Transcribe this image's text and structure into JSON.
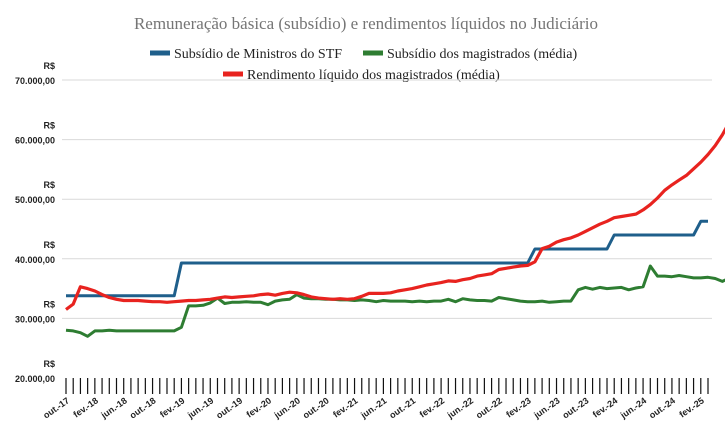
{
  "chart_data": {
    "type": "line",
    "title": "Remuneração básica (subsídio) e rendimentos líquidos no  Judiciário",
    "xlabel": "",
    "ylabel": "",
    "ylim": [
      20000,
      70000
    ],
    "y_ticks": [
      {
        "value": 70000,
        "currency": "R$",
        "label": "70.000,00"
      },
      {
        "value": 60000,
        "currency": "R$",
        "label": "60.000,00"
      },
      {
        "value": 50000,
        "currency": "R$",
        "label": "50.000,00"
      },
      {
        "value": 40000,
        "currency": "R$",
        "label": "40.000,00"
      },
      {
        "value": 30000,
        "currency": "R$",
        "label": "30.000,00"
      },
      {
        "value": 20000,
        "currency": "R$",
        "label": "20.000,00"
      }
    ],
    "x_tick_labels": [
      "out.-17",
      "fev.-18",
      "jun.-18",
      "out.-18",
      "fev.-19",
      "jun.-19",
      "out.-19",
      "fev.-20",
      "jun.-20",
      "out.-20",
      "fev.-21",
      "jun.-21",
      "out.-21",
      "fev.-22",
      "jun.-22",
      "out.-22",
      "fev.-23",
      "jun.-23",
      "out.-23",
      "fev.-24",
      "jun.-24",
      "out.-24",
      "fev.-25"
    ],
    "x_start": "2017-10",
    "grid": "horizontal",
    "legend_position": "top",
    "series": [
      {
        "name": "Subsídio de Ministros do STF",
        "color": "#1f5f8b",
        "values": [
          33800,
          33800,
          33800,
          33800,
          33800,
          33800,
          33800,
          33800,
          33800,
          33800,
          33800,
          33800,
          33800,
          33800,
          33800,
          33800,
          39300,
          39300,
          39300,
          39300,
          39300,
          39300,
          39300,
          39300,
          39300,
          39300,
          39300,
          39300,
          39300,
          39300,
          39300,
          39300,
          39300,
          39300,
          39300,
          39300,
          39300,
          39300,
          39300,
          39300,
          39300,
          39300,
          39300,
          39300,
          39300,
          39300,
          39300,
          39300,
          39300,
          39300,
          39300,
          39300,
          39300,
          39300,
          39300,
          39300,
          39300,
          39300,
          39300,
          39300,
          39300,
          39300,
          39300,
          39300,
          39300,
          41650,
          41650,
          41650,
          41650,
          41650,
          41650,
          41650,
          41650,
          41650,
          41650,
          41650,
          44000,
          44000,
          44000,
          44000,
          44000,
          44000,
          44000,
          44000,
          44000,
          44000,
          44000,
          44000,
          46300,
          46300
        ]
      },
      {
        "name": "Subsídio dos magistrados (média)",
        "color": "#2e7d32",
        "values": [
          28000,
          27900,
          27600,
          27000,
          27900,
          27900,
          28000,
          27900,
          27900,
          27900,
          27900,
          27900,
          27900,
          27900,
          27900,
          27900,
          28500,
          32100,
          32100,
          32200,
          32600,
          33400,
          32500,
          32700,
          32700,
          32800,
          32700,
          32700,
          32300,
          32900,
          33100,
          33200,
          34000,
          33400,
          33300,
          33300,
          33200,
          33200,
          33100,
          33100,
          33000,
          33100,
          33000,
          32800,
          33000,
          32900,
          32900,
          32900,
          32800,
          32900,
          32800,
          32900,
          32900,
          33200,
          32800,
          33300,
          33100,
          33000,
          33000,
          32900,
          33500,
          33300,
          33100,
          32900,
          32800,
          32800,
          32900,
          32700,
          32800,
          32900,
          32900,
          34800,
          35200,
          34900,
          35200,
          35000,
          35100,
          35200,
          34800,
          35100,
          35300,
          38800,
          37100,
          37100,
          37000,
          37200,
          37000,
          36800,
          36800,
          36900,
          36700,
          36200,
          36800,
          38800,
          37800
        ]
      },
      {
        "name": "Rendimento líquido dos magistrados (média)",
        "color": "#e8231f",
        "values": [
          31500,
          32400,
          35300,
          35000,
          34600,
          34000,
          33500,
          33200,
          33000,
          33000,
          33000,
          32900,
          32800,
          32800,
          32700,
          32800,
          32900,
          33000,
          33000,
          33100,
          33200,
          33400,
          33600,
          33500,
          33600,
          33700,
          33800,
          34000,
          34100,
          33900,
          34200,
          34400,
          34300,
          34000,
          33600,
          33400,
          33300,
          33200,
          33300,
          33200,
          33300,
          33700,
          34200,
          34200,
          34200,
          34300,
          34600,
          34800,
          35000,
          35300,
          35600,
          35800,
          36000,
          36300,
          36200,
          36500,
          36700,
          37100,
          37300,
          37500,
          38200,
          38400,
          38600,
          38800,
          38900,
          39500,
          41700,
          42100,
          42800,
          43200,
          43500,
          44000,
          44600,
          45200,
          45800,
          46300,
          46900,
          47100,
          47300,
          47500,
          48200,
          49100,
          50200,
          51500,
          52400,
          53200,
          54000,
          55100,
          56200,
          57500,
          59000,
          60800,
          63000,
          64300,
          66200,
          65500
        ]
      }
    ]
  }
}
